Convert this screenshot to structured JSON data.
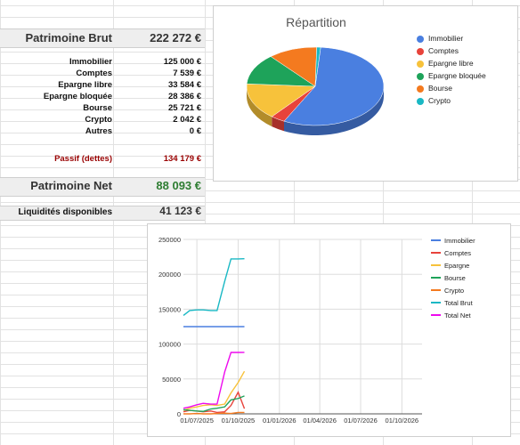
{
  "summary": {
    "brut_label": "Patrimoine Brut",
    "brut_value": "222 272 €",
    "rows": [
      {
        "label": "Immobilier",
        "value": "125 000 €"
      },
      {
        "label": "Comptes",
        "value": "7 539 €"
      },
      {
        "label": "Epargne libre",
        "value": "33 584 €"
      },
      {
        "label": "Epargne bloquée",
        "value": "28 386 €"
      },
      {
        "label": "Bourse",
        "value": "25 721 €"
      },
      {
        "label": "Crypto",
        "value": "2 042 €"
      },
      {
        "label": "Autres",
        "value": "0 €"
      }
    ],
    "passif_label": "Passif (dettes)",
    "passif_value": "134 179 €",
    "net_label": "Patrimoine Net",
    "net_value": "88 093 €",
    "liquid_label": "Liquidités disponibles",
    "liquid_value": "41 123 €"
  },
  "colors": {
    "immobilier": "#4a7fe0",
    "comptes": "#e8433b",
    "epargne_libre": "#f7c23b",
    "epargne_bloquee": "#1ea35a",
    "bourse": "#f47a1f",
    "crypto": "#19b8c4",
    "total_brut": "#19b8c4",
    "total_net": "#ee0aee",
    "net_value": "#2e7d32",
    "passif": "#990000"
  },
  "pie_chart": {
    "title": "Répartition",
    "legend": [
      {
        "label": "Immobilier",
        "color": "#4a7fe0"
      },
      {
        "label": "Comptes",
        "color": "#e8433b"
      },
      {
        "label": "Epargne libre",
        "color": "#f7c23b"
      },
      {
        "label": "Epargne bloquée",
        "color": "#1ea35a"
      },
      {
        "label": "Bourse",
        "color": "#f47a1f"
      },
      {
        "label": "Crypto",
        "color": "#19b8c4"
      }
    ]
  },
  "chart_data": [
    {
      "type": "pie",
      "title": "Répartition",
      "categories": [
        "Immobilier",
        "Comptes",
        "Epargne libre",
        "Epargne bloquée",
        "Bourse",
        "Crypto"
      ],
      "values": [
        125000,
        7539,
        33584,
        28386,
        25721,
        2042
      ],
      "legend_position": "right",
      "style": "3d"
    },
    {
      "type": "line",
      "x_ticks": [
        "01/07/2025",
        "01/10/2025",
        "01/01/2026",
        "01/04/2026",
        "01/07/2026",
        "01/10/2026"
      ],
      "y_ticks": [
        "0",
        "50000",
        "100000",
        "150000",
        "200000",
        "250000"
      ],
      "ylim": [
        0,
        250000
      ],
      "grid": true,
      "legend_position": "right",
      "x": [
        "2025-06-01",
        "2025-06-15",
        "2025-07-01",
        "2025-07-15",
        "2025-08-01",
        "2025-08-15",
        "2025-09-01",
        "2025-09-15",
        "2025-10-01",
        "2025-10-15"
      ],
      "series": [
        {
          "name": "Immobilier",
          "color": "#4a7fe0",
          "values": [
            125000,
            125000,
            125000,
            125000,
            125000,
            125000,
            125000,
            125000,
            125000,
            125000
          ]
        },
        {
          "name": "Comptes",
          "color": "#e8433b",
          "values": [
            3000,
            5000,
            4000,
            3000,
            4000,
            2000,
            3000,
            12000,
            31000,
            7500
          ]
        },
        {
          "name": "Epargne",
          "color": "#f7c23b",
          "values": [
            5000,
            8000,
            10000,
            12000,
            13000,
            12000,
            14000,
            30000,
            45000,
            61000
          ]
        },
        {
          "name": "Bourse",
          "color": "#1ea35a",
          "values": [
            6000,
            5000,
            4000,
            3500,
            7000,
            8000,
            10000,
            20000,
            22000,
            25700
          ]
        },
        {
          "name": "Crypto",
          "color": "#f47a1f",
          "values": [
            0,
            0,
            500,
            0,
            0,
            500,
            1000,
            500,
            2000,
            2000
          ]
        },
        {
          "name": "Total Brut",
          "color": "#19b8c4",
          "values": [
            141000,
            148000,
            149000,
            149000,
            148000,
            148000,
            190000,
            222000,
            222000,
            222300
          ]
        },
        {
          "name": "Total Net",
          "color": "#ee0aee",
          "values": [
            8000,
            10000,
            13000,
            15000,
            14000,
            14000,
            60000,
            88000,
            88000,
            88100
          ]
        }
      ]
    }
  ]
}
